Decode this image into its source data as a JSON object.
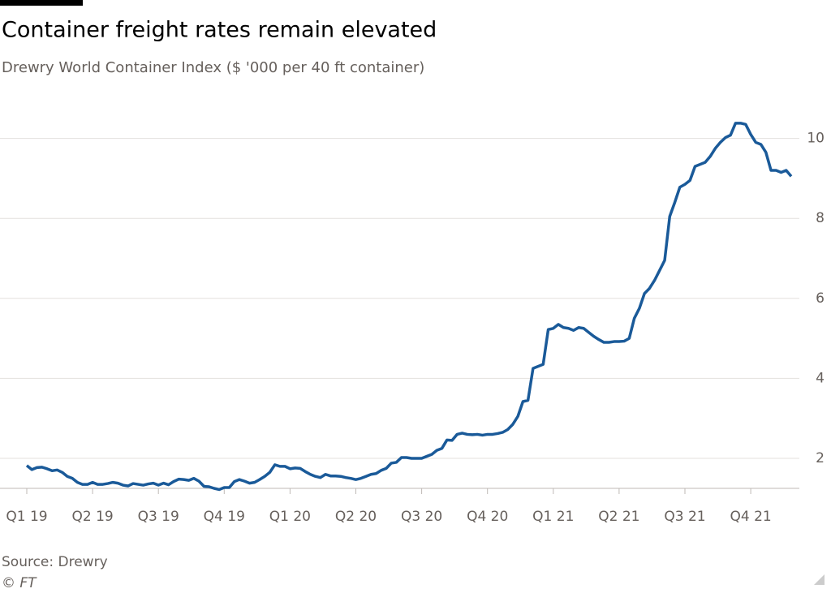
{
  "chart_data": {
    "type": "line",
    "title": "Container freight rates remain elevated",
    "subtitle": "Drewry World Container Index ($ '000 per 40 ft container)",
    "source": "Source: Drewry",
    "credit": "© FT",
    "color": "#1a5a99",
    "grid": true,
    "ylim": [
      1.25,
      10.6
    ],
    "yticks": [
      2,
      4,
      6,
      8,
      10
    ],
    "categories": [
      "Q1 19",
      null,
      null,
      null,
      null,
      null,
      null,
      null,
      null,
      null,
      null,
      null,
      null,
      "Q2 19",
      null,
      null,
      null,
      null,
      null,
      null,
      null,
      null,
      null,
      null,
      null,
      null,
      "Q3 19",
      null,
      null,
      null,
      null,
      null,
      null,
      null,
      null,
      null,
      null,
      null,
      null,
      "Q4 19",
      null,
      null,
      null,
      null,
      null,
      null,
      null,
      null,
      null,
      null,
      null,
      null,
      "Q1 20",
      null,
      null,
      null,
      null,
      null,
      null,
      null,
      null,
      null,
      null,
      null,
      null,
      "Q2 20",
      null,
      null,
      null,
      null,
      null,
      null,
      null,
      null,
      null,
      null,
      null,
      null,
      "Q3 20",
      null,
      null,
      null,
      null,
      null,
      null,
      null,
      null,
      null,
      null,
      null,
      null,
      "Q4 20",
      null,
      null,
      null,
      null,
      null,
      null,
      null,
      null,
      null,
      null,
      null,
      null,
      "Q1 21",
      null,
      null,
      null,
      null,
      null,
      null,
      null,
      null,
      null,
      null,
      null,
      null,
      "Q2 21",
      null,
      null,
      null,
      null,
      null,
      null,
      null,
      null,
      null,
      null,
      null,
      null,
      "Q3 21",
      null,
      null,
      null,
      null,
      null,
      null,
      null,
      null,
      null,
      null,
      null,
      null,
      "Q4 21",
      null,
      null,
      null,
      null,
      null,
      null,
      null,
      null
    ],
    "values": [
      1.82,
      1.72,
      1.77,
      1.78,
      1.74,
      1.69,
      1.71,
      1.65,
      1.55,
      1.5,
      1.4,
      1.35,
      1.35,
      1.4,
      1.35,
      1.35,
      1.37,
      1.4,
      1.38,
      1.33,
      1.31,
      1.37,
      1.35,
      1.33,
      1.36,
      1.38,
      1.33,
      1.38,
      1.34,
      1.42,
      1.48,
      1.47,
      1.45,
      1.5,
      1.43,
      1.3,
      1.29,
      1.25,
      1.22,
      1.27,
      1.27,
      1.42,
      1.47,
      1.43,
      1.38,
      1.4,
      1.47,
      1.55,
      1.65,
      1.84,
      1.8,
      1.8,
      1.74,
      1.76,
      1.75,
      1.67,
      1.6,
      1.55,
      1.52,
      1.6,
      1.56,
      1.56,
      1.55,
      1.52,
      1.5,
      1.47,
      1.5,
      1.55,
      1.6,
      1.62,
      1.7,
      1.75,
      1.88,
      1.9,
      2.02,
      2.02,
      2.0,
      2.0,
      2.0,
      2.05,
      2.1,
      2.2,
      2.25,
      2.46,
      2.45,
      2.6,
      2.63,
      2.6,
      2.59,
      2.6,
      2.58,
      2.6,
      2.6,
      2.62,
      2.65,
      2.72,
      2.85,
      3.05,
      3.42,
      3.45,
      4.25,
      4.3,
      4.35,
      5.22,
      5.25,
      5.35,
      5.27,
      5.25,
      5.2,
      5.27,
      5.25,
      5.15,
      5.05,
      4.97,
      4.9,
      4.9,
      4.92,
      4.92,
      4.93,
      5.0,
      5.5,
      5.75,
      6.12,
      6.25,
      6.45,
      6.7,
      6.95,
      8.05,
      8.4,
      8.78,
      8.85,
      8.95,
      9.3,
      9.35,
      9.4,
      9.55,
      9.75,
      9.9,
      10.02,
      10.08,
      10.38,
      10.38,
      10.35,
      10.1,
      9.9,
      9.85,
      9.65,
      9.2,
      9.2,
      9.15,
      9.2,
      9.05
    ]
  }
}
